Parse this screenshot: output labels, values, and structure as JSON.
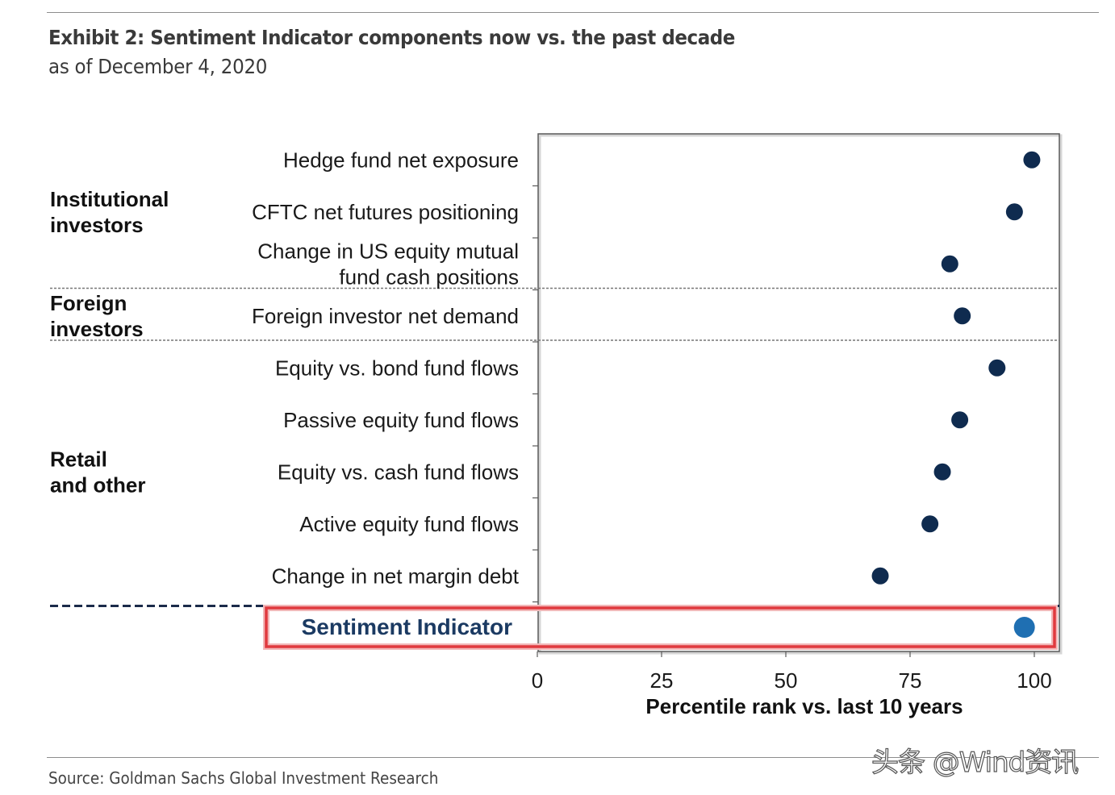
{
  "header": {
    "title": "Exhibit 2: Sentiment Indicator components now vs. the past decade",
    "subtitle": "as of December 4, 2020"
  },
  "footer": {
    "source": "Source: Goldman Sachs Global Investment Research",
    "watermark": "头条 @Wind资讯"
  },
  "colors": {
    "dot": "#0f2b4f",
    "highlight_dot": "#1f6fb2",
    "highlight_box": "#e0393e",
    "separator": "#1b2b4a"
  },
  "chart_data": {
    "type": "scatter",
    "orientation": "horizontal-dot-plot",
    "xlabel": "Percentile rank vs. last 10 years",
    "xlim": [
      0,
      100
    ],
    "xticks": [
      0,
      25,
      50,
      75,
      100
    ],
    "groups": [
      {
        "name": "Institutional investors",
        "lines": [
          "Institutional",
          "investors"
        ],
        "first_row": 0,
        "last_row": 2
      },
      {
        "name": "Foreign investors",
        "lines": [
          "Foreign",
          "investors"
        ],
        "first_row": 3,
        "last_row": 3
      },
      {
        "name": "Retail and other",
        "lines": [
          "Retail",
          "and other"
        ],
        "first_row": 4,
        "last_row": 8
      }
    ],
    "categories": [
      "Hedge fund net exposure",
      "CFTC net futures positioning",
      "Change in US equity mutual fund cash positions",
      "Foreign investor net demand",
      "Equity vs. bond fund flows",
      "Passive equity fund flows",
      "Equity vs. cash fund flows",
      "Active equity fund flows",
      "Change in net margin debt"
    ],
    "category_lines": [
      [
        "Hedge fund net exposure"
      ],
      [
        "CFTC net futures positioning"
      ],
      [
        "Change in US equity mutual",
        "fund cash positions"
      ],
      [
        "Foreign investor net demand"
      ],
      [
        "Equity vs. bond fund flows"
      ],
      [
        "Passive equity fund flows"
      ],
      [
        "Equity vs. cash fund flows"
      ],
      [
        "Active equity fund flows"
      ],
      [
        "Change in net margin debt"
      ]
    ],
    "values": [
      99.5,
      96,
      83,
      85.5,
      92.5,
      85,
      81.5,
      79,
      69
    ],
    "summary": {
      "label": "Sentiment Indicator",
      "value": 98,
      "highlighted": true
    }
  }
}
